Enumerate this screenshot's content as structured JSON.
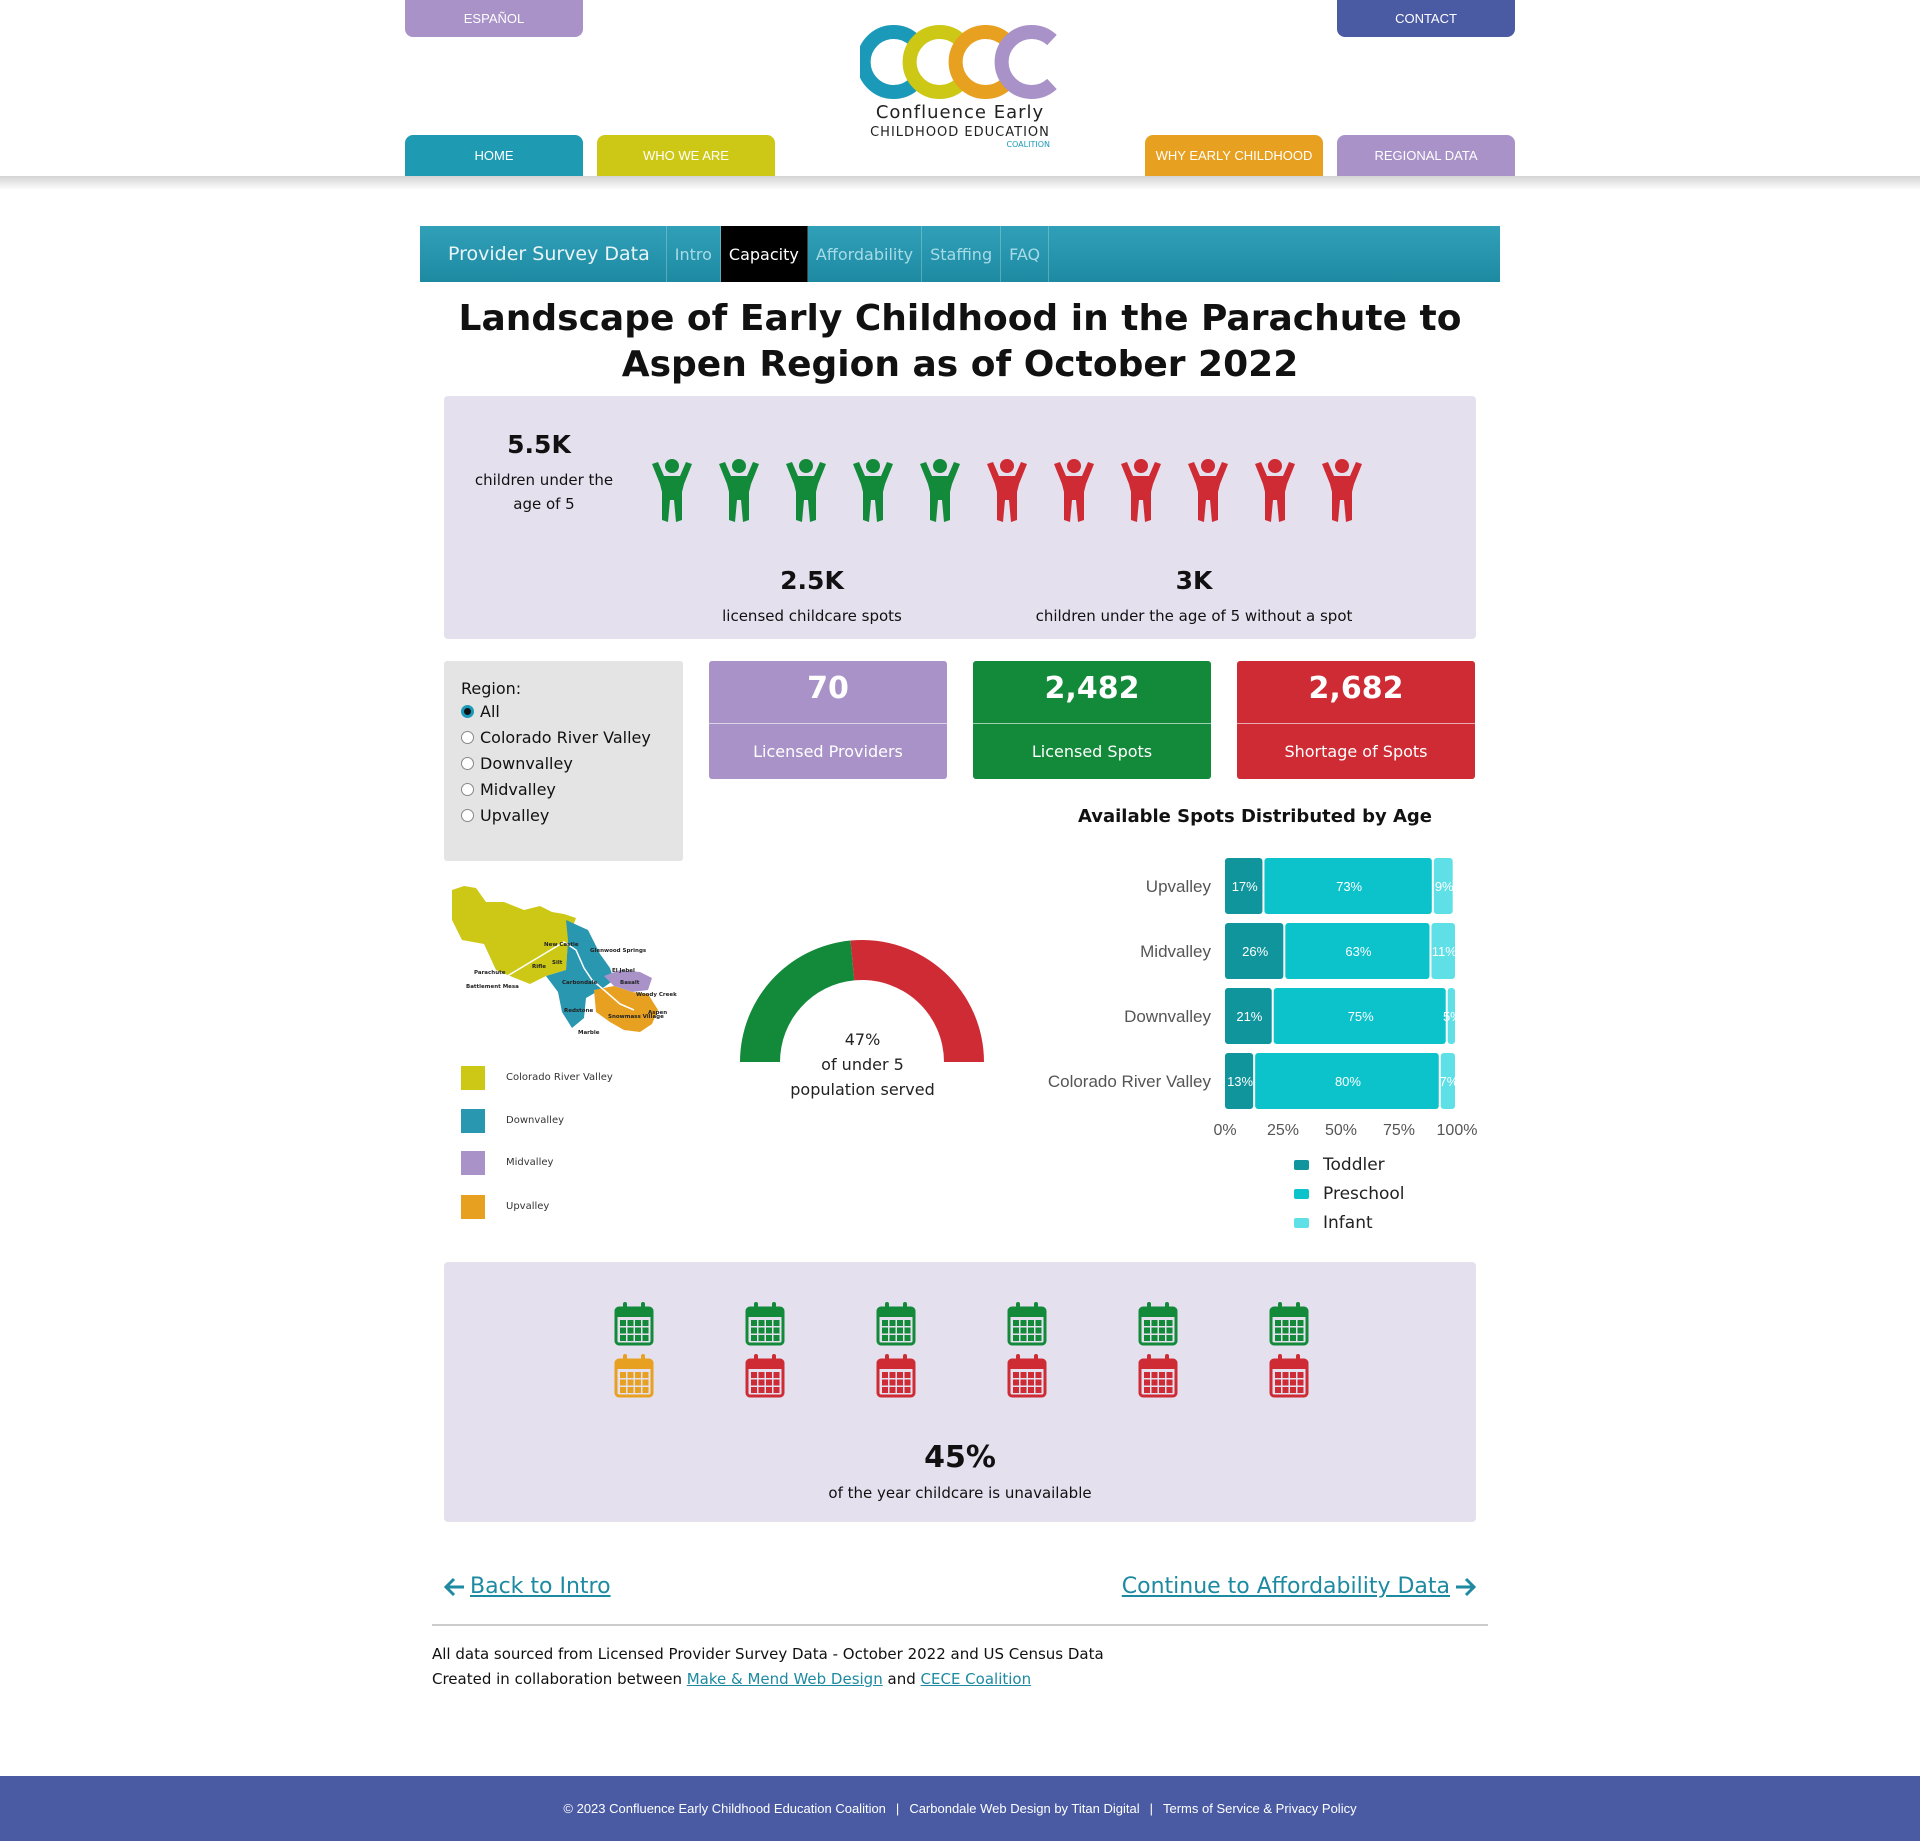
{
  "header": {
    "espanol_label": "ESPAÑOL",
    "contact_label": "CONTACT",
    "logo": {
      "letters": "CECC",
      "line1": "Confluence Early",
      "line2": "CHILDHOOD EDUCATION",
      "line3": "COALITION",
      "colors": [
        "#1a9ab8",
        "#cdc816",
        "#e8a020",
        "#a892c8"
      ]
    },
    "nav": [
      {
        "label": "HOME",
        "color": "#1f9ab3"
      },
      {
        "label": "WHO WE ARE",
        "color": "#cdc816"
      },
      {
        "label": "WHY EARLY CHILDHOOD",
        "color": "#e8a020"
      },
      {
        "label": "REGIONAL DATA",
        "color": "#a892c8"
      }
    ]
  },
  "subnav": {
    "brand": "Provider Survey Data",
    "tabs": [
      "Intro",
      "Capacity",
      "Affordability",
      "Staffing",
      "FAQ"
    ],
    "active": "Capacity"
  },
  "page_title": "Landscape of Early Childhood in the Parachute to Aspen Region as of October 2022",
  "summary": {
    "children_value": "5.5K",
    "children_label": "children under the age of 5",
    "spots_value": "2.5K",
    "spots_label": "licensed childcare spots",
    "without_value": "3K",
    "without_label": "children under the age of 5 without a spot",
    "icons_served": 5,
    "icons_total": 11,
    "served_color": "#128a3a",
    "unserved_color": "#cf2b35"
  },
  "region_filter": {
    "label": "Region:",
    "options": [
      "All",
      "Colorado River Valley",
      "Downvalley",
      "Midvalley",
      "Upvalley"
    ],
    "selected": "All"
  },
  "kpis": [
    {
      "value": "70",
      "label": "Licensed Providers",
      "color": "#a892c8"
    },
    {
      "value": "2,482",
      "label": "Licensed Spots",
      "color": "#128a3a"
    },
    {
      "value": "2,682",
      "label": "Shortage of Spots",
      "color": "#cf2b35"
    }
  ],
  "map": {
    "towns": [
      "New Castle",
      "Glenwood Springs",
      "Silt",
      "Rifle",
      "Parachute",
      "Battlement Mesa",
      "El Jebel",
      "Carbondale",
      "Basalt",
      "Woody Creek",
      "Redstone",
      "Snowmass Village",
      "Aspen",
      "Marble"
    ],
    "legend": [
      {
        "label": "Colorado River Valley",
        "color": "#cdc816"
      },
      {
        "label": "Downvalley",
        "color": "#2a97b0"
      },
      {
        "label": "Midvalley",
        "color": "#a892c8"
      },
      {
        "label": "Upvalley",
        "color": "#e8a020"
      }
    ]
  },
  "gauge": {
    "value": 47,
    "value_text": "47%",
    "line2": "of under 5",
    "line3": "population served",
    "served_color": "#128a3a",
    "unserved_color": "#cf2b35"
  },
  "chart_data": {
    "type": "bar",
    "orientation": "horizontal",
    "stacked": true,
    "title": "Available Spots Distributed by Age",
    "categories": [
      "Upvalley",
      "Midvalley",
      "Downvalley",
      "Colorado River Valley"
    ],
    "series": [
      {
        "name": "Toddler",
        "color": "#11959c",
        "values": [
          17,
          26,
          21,
          13
        ],
        "labels": [
          "17%",
          "26%",
          "21%",
          "13%"
        ]
      },
      {
        "name": "Preschool",
        "color": "#0cc3cb",
        "values": [
          73,
          63,
          75,
          80
        ],
        "labels": [
          "73%",
          "63%",
          "75%",
          "80%"
        ]
      },
      {
        "name": "Infant",
        "color": "#5fe0e6",
        "values": [
          9,
          11,
          5,
          7
        ],
        "labels": [
          "9%",
          "11%",
          "5%",
          "7%"
        ]
      }
    ],
    "xlim": [
      0,
      100
    ],
    "xticks": [
      "0%",
      "25%",
      "50%",
      "75%",
      "100%"
    ],
    "legend_position": "bottom"
  },
  "calendar": {
    "available_months": 6,
    "partial_months": 1,
    "unavailable_months": 5,
    "available_color": "#128a3a",
    "partial_color": "#e8a020",
    "unavailable_color": "#cf2b35",
    "value": "45%",
    "label": "of the year childcare is unavailable"
  },
  "pager": {
    "back": "Back to Intro",
    "next": "Continue to Affordability Data"
  },
  "sources": {
    "line1": "All data sourced from Licensed Provider Survey Data - October 2022 and US Census Data",
    "line2_prefix": "Created in collaboration between",
    "link1": "Make & Mend Web Design",
    "and": "and",
    "link2": "CECE Coalition"
  },
  "footer": {
    "copyright": "© 2023 Confluence Early Childhood Education Coalition",
    "design": "Carbondale Web Design by Titan Digital",
    "terms": "Terms of Service & Privacy Policy",
    "sep": "|"
  }
}
